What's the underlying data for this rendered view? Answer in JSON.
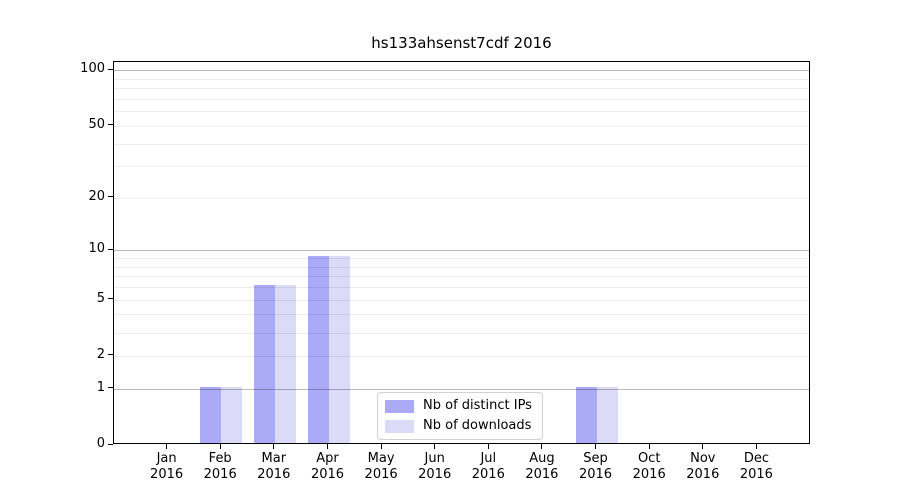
{
  "title": "hs133ahsenst7cdf 2016",
  "colors": {
    "background": "#ffffff",
    "axis": "#000000",
    "distinct_ips_bar": "#aaaaf6",
    "downloads_bar": "#dbdbf8",
    "grid_major": "#bdbdbd",
    "grid_minor": "#ebebeb",
    "legend_border": "#d2d2d2"
  },
  "chart_data": {
    "type": "bar",
    "title": "hs133ahsenst7cdf 2016",
    "categories": [
      "Jan 2016",
      "Feb 2016",
      "Mar 2016",
      "Apr 2016",
      "May 2016",
      "Jun 2016",
      "Jul 2016",
      "Aug 2016",
      "Sep 2016",
      "Oct 2016",
      "Nov 2016",
      "Dec 2016"
    ],
    "series": [
      {
        "name": "Nb of distinct IPs",
        "color": "#aaaaf6",
        "values": [
          0,
          1,
          6,
          9,
          0,
          0,
          0,
          0,
          1,
          0,
          0,
          0
        ]
      },
      {
        "name": "Nb of downloads",
        "color": "#dbdbf8",
        "values": [
          0,
          1,
          6,
          9,
          0,
          0,
          0,
          0,
          1,
          0,
          0,
          0
        ]
      }
    ],
    "xlabel": "",
    "ylabel": "",
    "yscale": "log1p",
    "ylim": [
      0,
      111
    ],
    "y_tick_values": [
      0,
      1,
      2,
      5,
      10,
      20,
      50,
      100
    ],
    "y_major_gridlines": [
      1,
      10,
      100
    ],
    "y_minor_gridlines": [
      2,
      3,
      4,
      5,
      6,
      7,
      8,
      9,
      20,
      30,
      40,
      50,
      60,
      70,
      80,
      90
    ],
    "grid": true,
    "legend_position": "lower center inside plot"
  }
}
